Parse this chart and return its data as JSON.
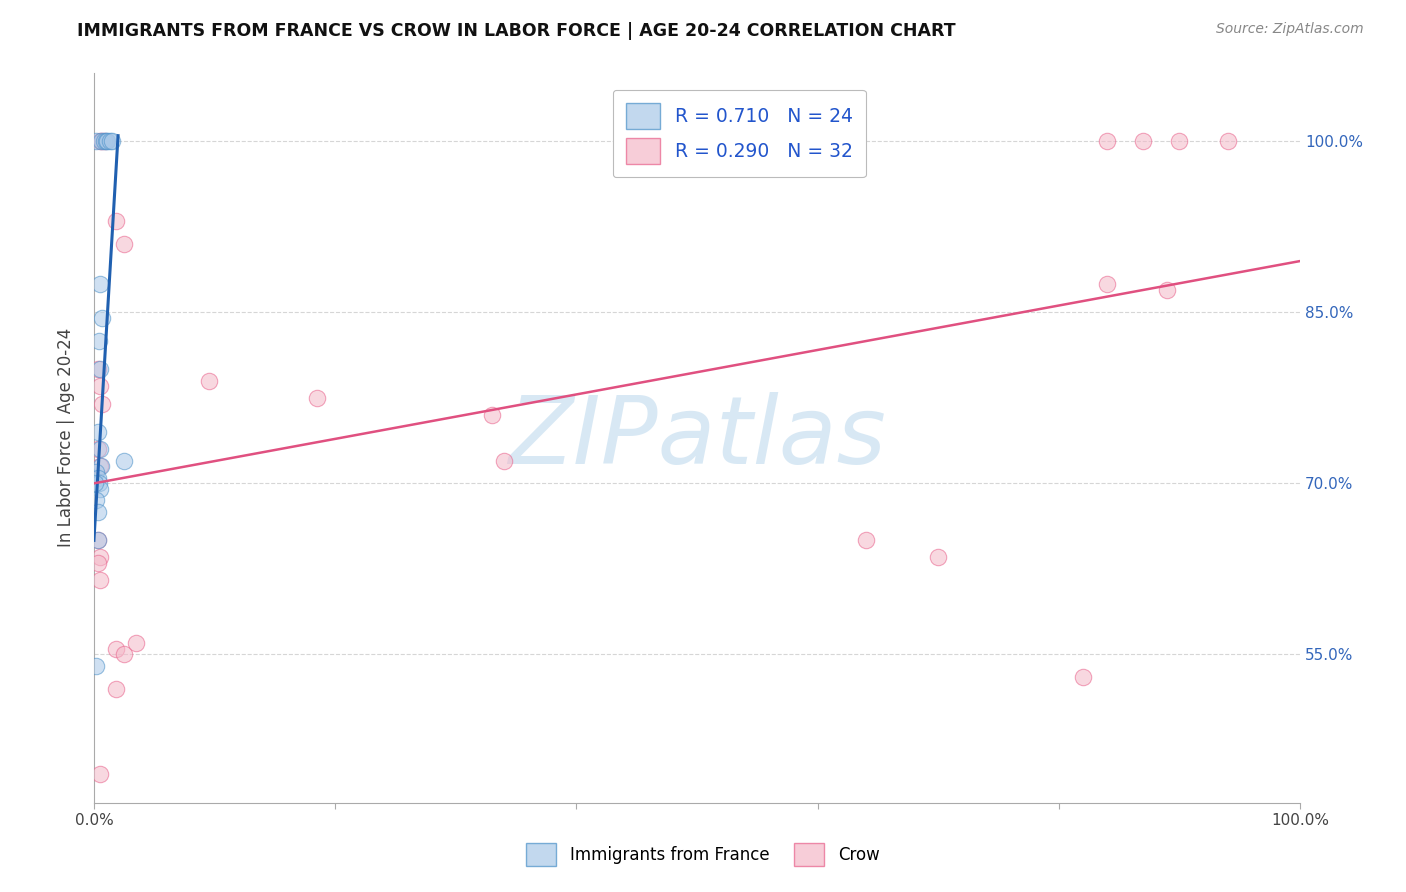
{
  "title": "IMMIGRANTS FROM FRANCE VS CROW IN LABOR FORCE | AGE 20-24 CORRELATION CHART",
  "source": "Source: ZipAtlas.com",
  "ylabel": "In Labor Force | Age 20-24",
  "xlim": [
    0,
    1.0
  ],
  "ylim": [
    0.42,
    1.06
  ],
  "xtick_positions": [
    0.0,
    0.2,
    0.4,
    0.6,
    0.8,
    1.0
  ],
  "xticklabels": [
    "0.0%",
    "",
    "",
    "",
    "",
    "100.0%"
  ],
  "ytick_positions": [
    0.55,
    0.7,
    0.85,
    1.0
  ],
  "ytick_labels": [
    "55.0%",
    "70.0%",
    "85.0%",
    "100.0%"
  ],
  "blue_color": "#a8c8e8",
  "pink_color": "#f4b8c8",
  "blue_edge_color": "#4a90c8",
  "pink_edge_color": "#e8608a",
  "blue_line_color": "#2060b0",
  "pink_line_color": "#e05080",
  "watermark_color": "#c8dff0",
  "watermark_text": "ZIPatlas",
  "blue_R": 0.71,
  "blue_N": 24,
  "pink_R": 0.29,
  "pink_N": 32,
  "blue_points": [
    [
      0.002,
      1.0
    ],
    [
      0.006,
      1.0
    ],
    [
      0.008,
      1.0
    ],
    [
      0.01,
      1.0
    ],
    [
      0.011,
      1.0
    ],
    [
      0.013,
      1.0
    ],
    [
      0.015,
      1.0
    ],
    [
      0.005,
      0.875
    ],
    [
      0.007,
      0.845
    ],
    [
      0.004,
      0.825
    ],
    [
      0.005,
      0.8
    ],
    [
      0.003,
      0.745
    ],
    [
      0.005,
      0.73
    ],
    [
      0.006,
      0.715
    ],
    [
      0.002,
      0.71
    ],
    [
      0.003,
      0.705
    ],
    [
      0.004,
      0.7
    ],
    [
      0.005,
      0.695
    ],
    [
      0.002,
      0.685
    ],
    [
      0.003,
      0.675
    ],
    [
      0.003,
      0.65
    ],
    [
      0.025,
      0.72
    ],
    [
      0.002,
      0.54
    ],
    [
      0.001,
      0.7
    ]
  ],
  "pink_points": [
    [
      0.005,
      1.0
    ],
    [
      0.007,
      1.0
    ],
    [
      0.009,
      1.0
    ],
    [
      0.84,
      1.0
    ],
    [
      0.87,
      1.0
    ],
    [
      0.9,
      1.0
    ],
    [
      0.94,
      1.0
    ],
    [
      0.018,
      0.93
    ],
    [
      0.025,
      0.91
    ],
    [
      0.095,
      0.79
    ],
    [
      0.185,
      0.775
    ],
    [
      0.33,
      0.76
    ],
    [
      0.003,
      0.8
    ],
    [
      0.005,
      0.785
    ],
    [
      0.007,
      0.77
    ],
    [
      0.003,
      0.73
    ],
    [
      0.005,
      0.715
    ],
    [
      0.003,
      0.65
    ],
    [
      0.005,
      0.635
    ],
    [
      0.84,
      0.875
    ],
    [
      0.89,
      0.87
    ],
    [
      0.64,
      0.65
    ],
    [
      0.7,
      0.635
    ],
    [
      0.82,
      0.53
    ],
    [
      0.018,
      0.555
    ],
    [
      0.025,
      0.55
    ],
    [
      0.035,
      0.56
    ],
    [
      0.018,
      0.52
    ],
    [
      0.005,
      0.445
    ],
    [
      0.003,
      0.63
    ],
    [
      0.005,
      0.615
    ],
    [
      0.34,
      0.72
    ]
  ],
  "blue_trendline_x": [
    0.0,
    0.02
  ],
  "blue_trendline_y": [
    0.65,
    1.005
  ],
  "pink_trendline_x": [
    0.0,
    1.0
  ],
  "pink_trendline_y": [
    0.7,
    0.895
  ]
}
